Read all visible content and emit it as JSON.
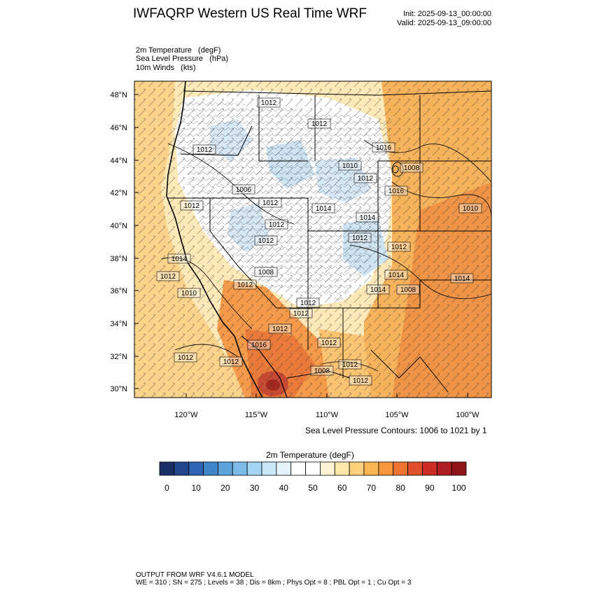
{
  "header": {
    "title": "IWFAQRP Western US Real Time WRF",
    "init": "Init: 2025-09-13_00:00:00",
    "valid": "Valid: 2025-09-13_09:00:00"
  },
  "fields": [
    "2m Temperature   (degF)",
    "Sea Level Pressure   (hPa)",
    "10m Winds   (kts)"
  ],
  "map": {
    "lat_labels": [
      "48°N",
      "46°N",
      "44°N",
      "42°N",
      "40°N",
      "38°N",
      "36°N",
      "34°N",
      "32°N",
      "30°N"
    ],
    "lon_labels": [
      "120°W",
      "115°W",
      "110°W",
      "105°W",
      "100°W"
    ],
    "pressure_labels": [
      "1012",
      "1012",
      "1016",
      "1008",
      "1012",
      "1010",
      "1012",
      "1014",
      "1012",
      "1012",
      "1016",
      "1012",
      "1012",
      "1012",
      "1008",
      "1014",
      "1012",
      "1010",
      "1014",
      "1008",
      "1012",
      "1012",
      "1014",
      "1010",
      "1012",
      "1012",
      "1012",
      "1016",
      "1012",
      "1012",
      "1008",
      "1006",
      "1014",
      "1014",
      "1012",
      "1012",
      "1012"
    ],
    "contour_note": "Sea Level Pressure Contours: 1006 to 1021 by 1",
    "colors": {
      "very_hot": "#c0392b",
      "hot": "#e8823a",
      "warm": "#f7b35c",
      "mild": "#fde2a6",
      "cool": "#ffffff",
      "cold": "#cfe4f3",
      "land_outline": "#000000"
    }
  },
  "colorbar": {
    "title": "2m Temperature  (degF)",
    "colors": [
      "#1a2e66",
      "#22478f",
      "#2f66b3",
      "#3f86c9",
      "#5aa3dc",
      "#7dbce9",
      "#a3d4f3",
      "#c7e6f8",
      "#e3f2fb",
      "#ffffff",
      "#ffffff",
      "#fff5d6",
      "#fee7a8",
      "#fdd17c",
      "#fbb552",
      "#f8963c",
      "#ef7432",
      "#e1502a",
      "#cc2e26",
      "#b01d22",
      "#8f1519"
    ],
    "tick_labels": [
      "0",
      "10",
      "20",
      "30",
      "40",
      "50",
      "60",
      "70",
      "80",
      "90",
      "100"
    ]
  },
  "footer": {
    "line1": "OUTPUT FROM WRF V4.6.1 MODEL",
    "line2": "WE = 310 ; SN = 275 ; Levels = 38 ; Dis = 8km ; Phys Opt = 8 ; PBL Opt = 1 ; Cu Opt = 3"
  }
}
